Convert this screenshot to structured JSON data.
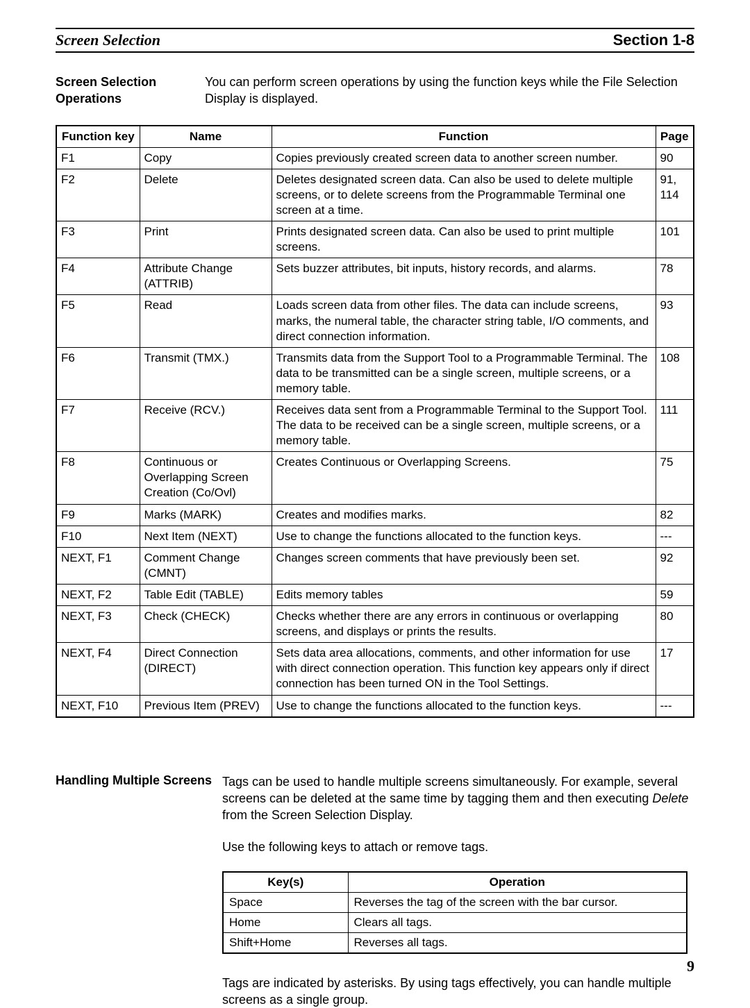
{
  "header": {
    "left": "Screen Selection",
    "right": "Section 1-8"
  },
  "intro": {
    "heading_line1": "Screen Selection",
    "heading_line2": "Operations",
    "text": "You can perform screen operations by using the function keys while the File Selection Display is displayed."
  },
  "func_table": {
    "headers": {
      "key": "Function key",
      "name": "Name",
      "func": "Function",
      "page": "Page"
    },
    "rows": [
      {
        "key": "F1",
        "name": "Copy",
        "func": "Copies previously created screen data to another screen number.",
        "page": "90"
      },
      {
        "key": "F2",
        "name": "Delete",
        "func": "Deletes designated screen data. Can also be used to delete multiple screens, or to delete screens from the Programmable Terminal one screen at a time.",
        "page": "91, 114"
      },
      {
        "key": "F3",
        "name": "Print",
        "func": "Prints designated screen data. Can also be used to print multiple screens.",
        "page": "101"
      },
      {
        "key": "F4",
        "name": "Attribute Change (ATTRIB)",
        "func": "Sets buzzer attributes, bit inputs, history records, and alarms.",
        "page": "78"
      },
      {
        "key": "F5",
        "name": "Read",
        "func": "Loads screen data from other files. The data can include screens, marks, the numeral table, the character string table, I/O comments, and direct connection information.",
        "page": "93"
      },
      {
        "key": "F6",
        "name": "Transmit (TMX.)",
        "func": "Transmits data from the Support Tool to a Programmable Terminal. The data to be transmitted can be a single screen, multiple screens, or a memory table.",
        "page": "108"
      },
      {
        "key": "F7",
        "name": "Receive (RCV.)",
        "func": "Receives data sent from a Programmable Terminal to the Support Tool. The data to be received can be a single screen, multiple screens, or a memory table.",
        "page": "111"
      },
      {
        "key": "F8",
        "name": "Continuous or Overlapping Screen Creation (Co/Ovl)",
        "func": "Creates Continuous or Overlapping Screens.",
        "page": "75"
      },
      {
        "key": "F9",
        "name": "Marks (MARK)",
        "func": "Creates and modifies marks.",
        "page": "82"
      },
      {
        "key": "F10",
        "name": "Next Item (NEXT)",
        "func": "Use to change the functions allocated to the function keys.",
        "page": "---"
      },
      {
        "key": "NEXT, F1",
        "name": "Comment Change (CMNT)",
        "func": "Changes screen comments that have previously been set.",
        "page": "92"
      },
      {
        "key": "NEXT, F2",
        "name": "Table Edit (TABLE)",
        "func": "Edits memory tables",
        "page": "59"
      },
      {
        "key": "NEXT, F3",
        "name": "Check (CHECK)",
        "func": "Checks whether there are any errors in continuous or overlapping screens, and displays or prints the results.",
        "page": "80"
      },
      {
        "key": "NEXT, F4",
        "name": "Direct Connection (DIRECT)",
        "func": "Sets data area allocations, comments, and other information for use with direct connection operation. This function key appears only if direct connection has been turned ON in the Tool Settings.",
        "page": "17"
      },
      {
        "key": "NEXT, F10",
        "name": "Previous Item (PREV)",
        "func": "Use to change the functions allocated to the function keys.",
        "page": "---"
      }
    ]
  },
  "section2": {
    "heading": "Handling Multiple Screens",
    "para1_a": "Tags can be used to handle multiple screens simultaneously. For example, several screens can be deleted at the same time by tagging them and then executing ",
    "para1_ital": "Delete",
    "para1_b": " from the Screen Selection Display.",
    "para2": "Use the following keys to attach or remove tags."
  },
  "keys_table": {
    "headers": {
      "key": "Key(s)",
      "op": "Operation"
    },
    "rows": [
      {
        "key": "Space",
        "op": "Reverses the tag of the screen with the bar cursor."
      },
      {
        "key": "Home",
        "op": "Clears all tags."
      },
      {
        "key": "Shift+Home",
        "op": "Reverses all tags."
      }
    ]
  },
  "after": "Tags are indicated by asterisks. By using tags effectively, you can handle multiple screens as a single group.",
  "page_number": "9"
}
